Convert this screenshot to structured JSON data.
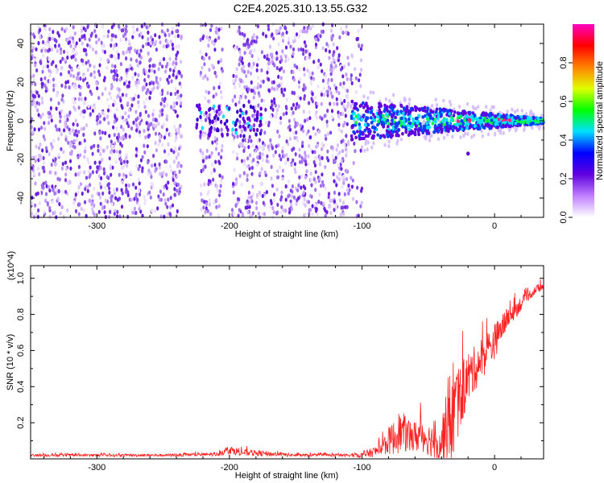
{
  "title": "C2E4.2025.310.13.55.G32",
  "chart_data": [
    {
      "type": "heatmap",
      "xlabel": "Height of straight line (km)",
      "ylabel": "Frequency (Hz)",
      "xlim": [
        -350,
        37
      ],
      "ylim": [
        -50,
        50
      ],
      "xticks": [
        -300,
        -200,
        -100,
        0
      ],
      "xtick_labels": [
        "-300",
        "-200",
        "-100",
        "0"
      ],
      "yticks": [
        -40,
        -20,
        0,
        20,
        40
      ],
      "ytick_labels": [
        "-40",
        "-20",
        "0",
        "20",
        "40"
      ],
      "description_bands": {
        "noise_region_km": [
          -350,
          -100
        ],
        "signal_line_freq_hz": 0,
        "signal_start_km": -108,
        "cluster_near_km": -215
      },
      "colorbar": {
        "label": "Normalized spectral amplitude",
        "range": [
          0.0,
          1.0
        ],
        "ticks": [
          0.0,
          0.2,
          0.4,
          0.6,
          0.8
        ],
        "tick_labels": [
          "0.0",
          "0.2",
          "0.4",
          "0.6",
          "0.8"
        ],
        "colors": [
          "#ffffff",
          "#c080ff",
          "#6000e0",
          "#0000ff",
          "#00e0ff",
          "#00ff00",
          "#e0ff00",
          "#ff8000",
          "#ff0000",
          "#ff00c0"
        ]
      }
    },
    {
      "type": "line",
      "xlabel": "Height of straight line (km)",
      "ylabel": "SNR (10 * v/v)",
      "y_multiplier": "(x10^4)",
      "xlim": [
        -350,
        37
      ],
      "ylim": [
        0,
        1.07
      ],
      "xticks": [
        -300,
        -200,
        -100,
        0
      ],
      "xtick_labels": [
        "-300",
        "-200",
        "-100",
        "0"
      ],
      "yticks": [
        0.2,
        0.4,
        0.6,
        0.8,
        1.0
      ],
      "ytick_labels": [
        "0.2",
        "0.4",
        "0.6",
        "0.8",
        "1.0"
      ],
      "series_color": "#ff2020",
      "series": [
        {
          "name": "SNR",
          "x": [
            -350,
            -300,
            -250,
            -210,
            -200,
            -190,
            -150,
            -110,
            -100,
            -90,
            -85,
            -80,
            -75,
            -70,
            -65,
            -60,
            -55,
            -50,
            -45,
            -40,
            -35,
            -32,
            -30,
            -28,
            -25,
            -20,
            -15,
            -10,
            -5,
            0,
            5,
            10,
            15,
            20,
            25,
            30,
            37
          ],
          "base": [
            0.02,
            0.02,
            0.02,
            0.025,
            0.05,
            0.035,
            0.02,
            0.02,
            0.02,
            0.04,
            0.06,
            0.1,
            0.12,
            0.15,
            0.13,
            0.12,
            0.14,
            0.11,
            0.1,
            0.1,
            0.2,
            0.25,
            0.3,
            0.3,
            0.35,
            0.45,
            0.5,
            0.55,
            0.6,
            0.65,
            0.72,
            0.78,
            0.82,
            0.86,
            0.9,
            0.93,
            0.96
          ],
          "spread": [
            0.015,
            0.015,
            0.015,
            0.02,
            0.05,
            0.04,
            0.015,
            0.015,
            0.03,
            0.06,
            0.1,
            0.15,
            0.2,
            0.22,
            0.2,
            0.18,
            0.2,
            0.18,
            0.2,
            0.3,
            0.4,
            0.7,
            0.5,
            0.4,
            0.35,
            0.3,
            0.25,
            0.25,
            0.2,
            0.2,
            0.15,
            0.12,
            0.1,
            0.08,
            0.06,
            0.05,
            0.04
          ]
        }
      ]
    }
  ]
}
